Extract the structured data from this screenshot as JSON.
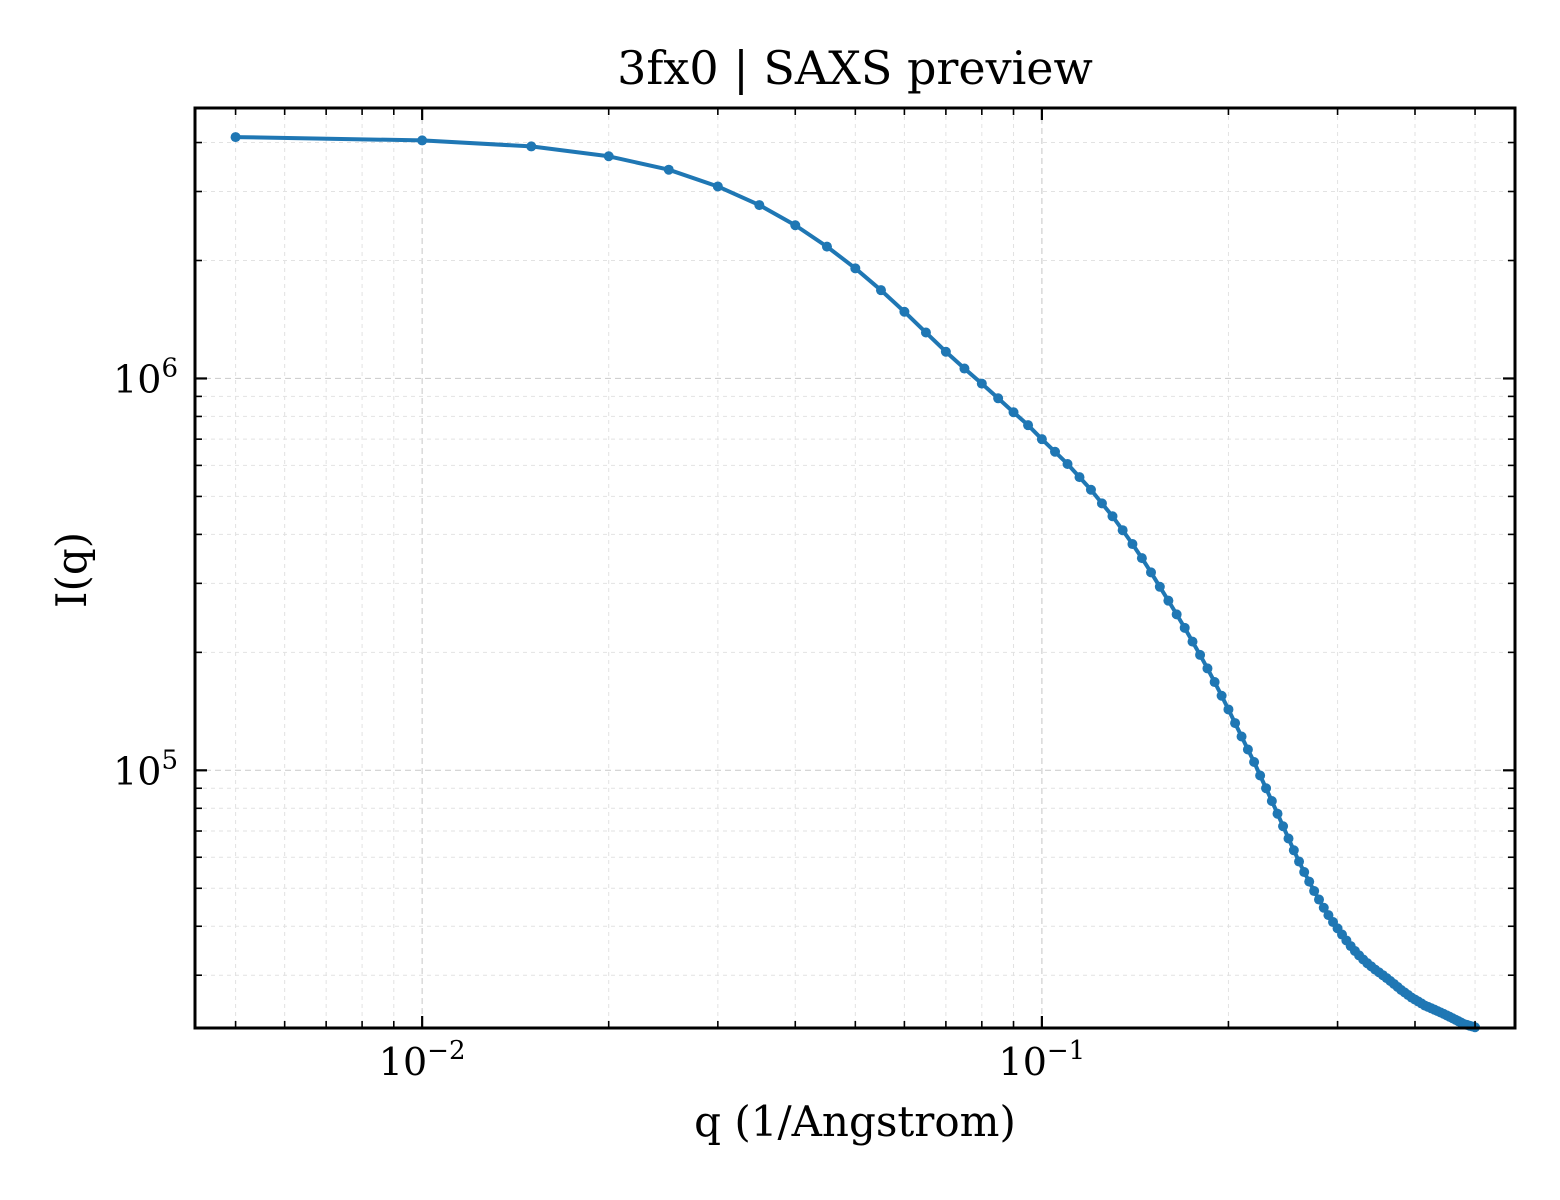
{
  "chart_data": {
    "type": "line",
    "title": "3fx0 | SAXS preview",
    "xlabel": "q (1/Angstrom)",
    "ylabel": "I(q)",
    "xscale": "log",
    "yscale": "log",
    "xlim": [
      0.0043,
      0.58
    ],
    "ylim": [
      22000,
      4900000
    ],
    "grid": true,
    "marker": "circle",
    "line_color": "#1f77b4",
    "x_ticks": [
      {
        "base": "10",
        "exp": "−2",
        "value": 0.01
      },
      {
        "base": "10",
        "exp": "−1",
        "value": 0.1
      }
    ],
    "y_ticks": [
      {
        "base": "10",
        "exp": "5",
        "value": 100000
      },
      {
        "base": "10",
        "exp": "6",
        "value": 1000000
      }
    ],
    "series": [
      {
        "q": [
          0.005,
          0.01,
          0.015,
          0.02,
          0.025,
          0.03,
          0.035,
          0.04,
          0.045,
          0.05,
          0.055,
          0.06,
          0.065,
          0.07,
          0.075,
          0.08,
          0.085,
          0.09,
          0.095,
          0.1,
          0.105,
          0.11,
          0.115,
          0.12,
          0.125,
          0.13,
          0.135,
          0.14,
          0.145,
          0.15,
          0.155,
          0.16,
          0.165,
          0.17,
          0.175,
          0.18,
          0.185,
          0.19,
          0.195,
          0.2,
          0.205,
          0.21,
          0.215,
          0.22,
          0.225,
          0.23,
          0.235,
          0.24,
          0.245,
          0.25,
          0.255,
          0.26,
          0.265,
          0.27,
          0.275,
          0.28,
          0.285,
          0.29,
          0.295,
          0.3,
          0.305,
          0.31,
          0.315,
          0.32,
          0.325,
          0.33,
          0.335,
          0.34,
          0.345,
          0.35,
          0.355,
          0.36,
          0.365,
          0.37,
          0.375,
          0.38,
          0.385,
          0.39,
          0.395,
          0.4,
          0.405,
          0.41,
          0.415,
          0.42,
          0.425,
          0.43,
          0.435,
          0.44,
          0.445,
          0.45,
          0.455,
          0.46,
          0.465,
          0.47,
          0.475,
          0.48,
          0.485,
          0.49,
          0.495,
          0.5
        ],
        "I": [
          4130000,
          4050000,
          3910000,
          3690000,
          3410000,
          3090000,
          2770000,
          2460000,
          2170000,
          1910000,
          1680000,
          1480000,
          1310000,
          1170000,
          1060000,
          970000,
          890000,
          820000,
          760000,
          700000,
          650000,
          605000,
          560000,
          520000,
          480000,
          445000,
          410000,
          378000,
          348000,
          320000,
          294000,
          271000,
          250000,
          231000,
          213000,
          197000,
          182000,
          168000,
          155000,
          143000,
          132000,
          122000,
          113000,
          105000,
          97000,
          90000,
          83500,
          77500,
          72000,
          67000,
          62500,
          58500,
          55000,
          52000,
          49200,
          46800,
          44600,
          42700,
          41000,
          39500,
          38100,
          36800,
          35600,
          34600,
          33700,
          32900,
          32200,
          31600,
          31000,
          30500,
          30000,
          29500,
          29000,
          28500,
          28000,
          27500,
          27100,
          26700,
          26300,
          26000,
          25700,
          25400,
          25100,
          24900,
          24700,
          24500,
          24300,
          24100,
          23900,
          23700,
          23500,
          23300,
          23100,
          22900,
          22700,
          22500,
          22400,
          22300,
          22200,
          22100
        ]
      }
    ]
  }
}
